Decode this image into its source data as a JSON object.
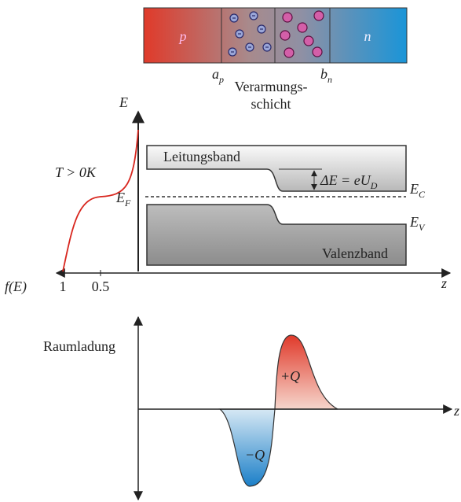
{
  "bar": {
    "p": "p",
    "n": "n"
  },
  "labels": {
    "a_p": {
      "main": "a",
      "sub": "p"
    },
    "b_n": {
      "main": "b",
      "sub": "n"
    },
    "depletion": [
      "Verarmungs-",
      "schicht"
    ]
  },
  "band_diagram": {
    "y_axis": "E",
    "temperature": "T > 0K",
    "fermi": {
      "main": "E",
      "sub": "F"
    },
    "conduction_band": "Leitungsband",
    "delta": {
      "main": "ΔE = eU",
      "sub": "D"
    },
    "e_c": {
      "main": "E",
      "sub": "C"
    },
    "e_v": {
      "main": "E",
      "sub": "V"
    },
    "valence_band": "Valenzband",
    "f_axis": "f(E)",
    "f_ticks": [
      "1",
      "0.5"
    ],
    "x_axis": "z"
  },
  "charge_diagram": {
    "y_axis": "Raumladung",
    "plus": "+Q",
    "minus": "−Q",
    "x_axis": "z"
  }
}
